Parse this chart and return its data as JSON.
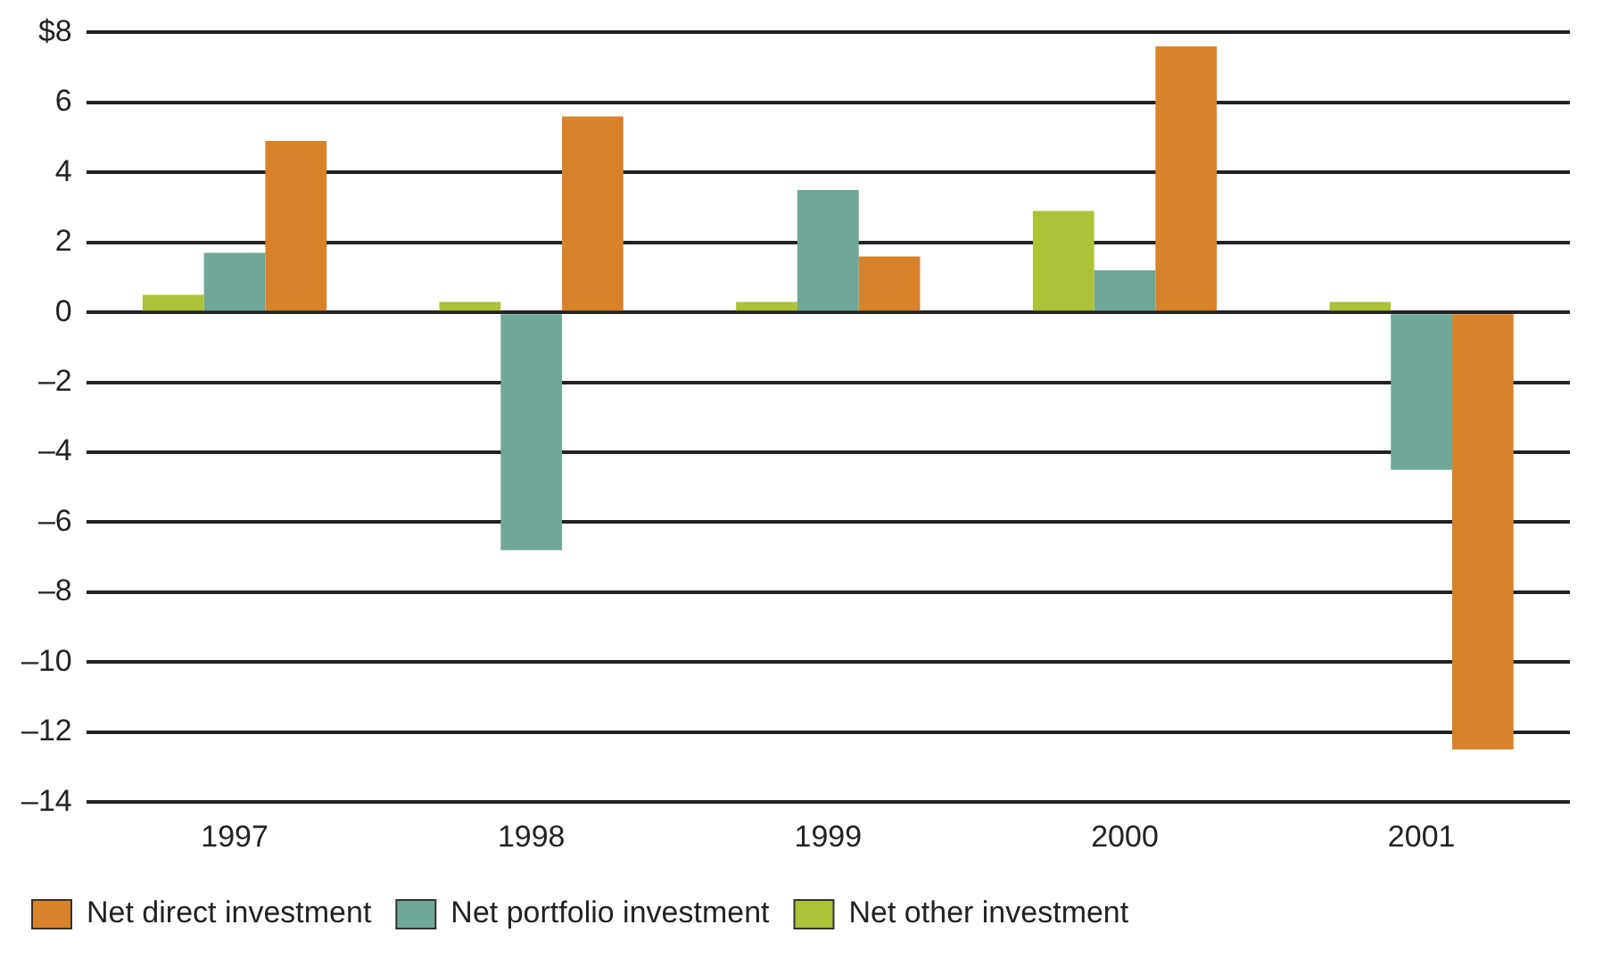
{
  "chart_data": {
    "type": "bar",
    "categories": [
      "1997",
      "1998",
      "1999",
      "2000",
      "2001"
    ],
    "series": [
      {
        "name": "Net other investment",
        "color": "#adc236",
        "values": [
          0.5,
          0.3,
          0.3,
          2.9,
          0.3
        ]
      },
      {
        "name": "Net portfolio investment",
        "color": "#6fa798",
        "values": [
          1.7,
          -6.8,
          3.5,
          1.2,
          -4.5
        ]
      },
      {
        "name": "Net direct investment",
        "color": "#d8832a",
        "values": [
          4.9,
          5.6,
          1.6,
          7.6,
          -12.5
        ]
      }
    ],
    "ylim": [
      -14,
      8
    ],
    "yticks": [
      {
        "value": -14,
        "label": "–14"
      },
      {
        "value": -12,
        "label": "–12"
      },
      {
        "value": -10,
        "label": "–10"
      },
      {
        "value": -8,
        "label": "–8"
      },
      {
        "value": -6,
        "label": "–6"
      },
      {
        "value": -4,
        "label": "–4"
      },
      {
        "value": -2,
        "label": "–2"
      },
      0,
      2,
      4,
      6,
      {
        "value": 8,
        "label": "$8"
      }
    ],
    "grid": "y",
    "legend": "bottom left"
  }
}
